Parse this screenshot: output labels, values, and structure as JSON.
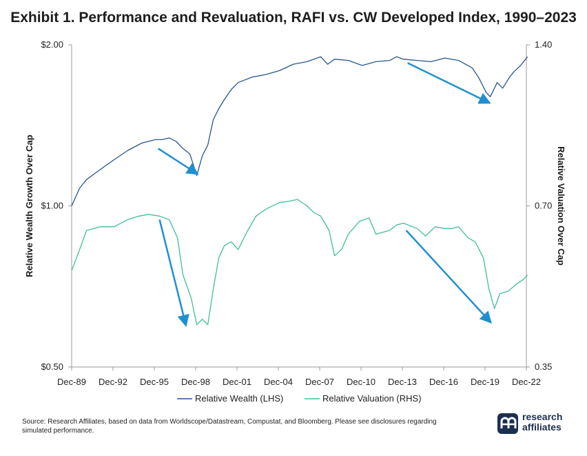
{
  "title": "Exhibit 1. Performance and Revaluation, RAFI vs. CW Developed Index, 1990–2023",
  "source": "Source: Research Affiliates, based on data from Worldscope/Datastream, Compustat, and Bloomberg. Please see disclosures regarding simulated performance.",
  "logo": {
    "line1": "research",
    "line2": "affiliates"
  },
  "colors": {
    "wealth": "#27568f",
    "valuation": "#3dbf9c",
    "arrow": "#1f8fd0",
    "axis": "#999999"
  },
  "chart_data": {
    "type": "line",
    "x_ticks": [
      "Dec-89",
      "Dec-92",
      "Dec-95",
      "Dec-98",
      "Dec-01",
      "Dec-04",
      "Dec-07",
      "Dec-10",
      "Dec-13",
      "Dec-16",
      "Dec-19",
      "Dec-22"
    ],
    "y_left": {
      "label": "Relative Wealth Growth Over Cap",
      "scale": "log",
      "range": [
        0.5,
        2.0
      ],
      "ticks": [
        "$0.50",
        "$1.00",
        "$2.00"
      ],
      "tick_values": [
        0.5,
        1.0,
        2.0
      ]
    },
    "y_right": {
      "label": "Relative Valuation Over Cap",
      "scale": "log",
      "range": [
        0.35,
        1.4
      ],
      "ticks": [
        "0.35",
        "0.70",
        "1.40"
      ],
      "tick_values": [
        0.35,
        0.7,
        1.4
      ]
    },
    "legend": {
      "placement": "bottom"
    },
    "grid": false,
    "series": [
      {
        "name": "Relative Wealth (LHS)",
        "axis": "left",
        "x": [
          1989.92,
          1990.5,
          1991.0,
          1992.0,
          1993.0,
          1994.0,
          1995.0,
          1996.0,
          1996.5,
          1997.0,
          1997.5,
          1998.0,
          1998.5,
          1999.0,
          1999.4,
          1999.8,
          2000.2,
          2000.6,
          2001.0,
          2001.5,
          2002.0,
          2003.0,
          2004.0,
          2005.0,
          2006.0,
          2007.0,
          2008.0,
          2008.5,
          2009.0,
          2010.0,
          2011.0,
          2012.0,
          2013.0,
          2013.5,
          2014.0,
          2015.0,
          2016.0,
          2017.0,
          2018.0,
          2019.0,
          2019.5,
          2020.0,
          2020.3,
          2020.8,
          2021.2,
          2021.7,
          2022.0,
          2022.5,
          2023.0
        ],
        "y": [
          1.0,
          1.08,
          1.12,
          1.17,
          1.22,
          1.27,
          1.31,
          1.33,
          1.33,
          1.34,
          1.32,
          1.28,
          1.25,
          1.14,
          1.24,
          1.3,
          1.45,
          1.52,
          1.58,
          1.65,
          1.7,
          1.74,
          1.76,
          1.79,
          1.84,
          1.86,
          1.9,
          1.84,
          1.88,
          1.87,
          1.83,
          1.86,
          1.87,
          1.9,
          1.88,
          1.87,
          1.86,
          1.89,
          1.87,
          1.81,
          1.73,
          1.63,
          1.6,
          1.7,
          1.66,
          1.74,
          1.78,
          1.83,
          1.9
        ]
      },
      {
        "name": "Relative Valuation (RHS)",
        "axis": "right",
        "x": [
          1989.92,
          1990.5,
          1991.0,
          1992.0,
          1993.0,
          1994.0,
          1994.8,
          1995.5,
          1996.3,
          1997.0,
          1997.6,
          1998.0,
          1998.6,
          1999.0,
          1999.4,
          1999.8,
          2000.2,
          2000.6,
          2001.0,
          2001.5,
          2002.0,
          2002.7,
          2003.3,
          2004.0,
          2005.0,
          2005.8,
          2006.3,
          2007.0,
          2007.5,
          2008.0,
          2008.6,
          2009.0,
          2009.5,
          2010.0,
          2010.8,
          2011.5,
          2012.0,
          2013.0,
          2013.5,
          2014.0,
          2015.0,
          2015.6,
          2016.3,
          2017.0,
          2017.5,
          2018.0,
          2018.7,
          2019.2,
          2019.8,
          2020.2,
          2020.6,
          2021.0,
          2021.6,
          2022.2,
          2022.7,
          2023.0
        ],
        "y": [
          0.53,
          0.58,
          0.63,
          0.64,
          0.64,
          0.66,
          0.67,
          0.675,
          0.67,
          0.66,
          0.61,
          0.52,
          0.47,
          0.42,
          0.43,
          0.42,
          0.49,
          0.56,
          0.59,
          0.6,
          0.58,
          0.63,
          0.67,
          0.69,
          0.71,
          0.715,
          0.72,
          0.7,
          0.68,
          0.67,
          0.63,
          0.565,
          0.58,
          0.62,
          0.655,
          0.665,
          0.62,
          0.63,
          0.645,
          0.65,
          0.635,
          0.615,
          0.64,
          0.635,
          0.635,
          0.64,
          0.61,
          0.6,
          0.56,
          0.49,
          0.45,
          0.48,
          0.485,
          0.5,
          0.51,
          0.52
        ]
      }
    ],
    "annotations": [
      {
        "type": "arrow",
        "from": [
          1996.2,
          1.28
        ],
        "to": [
          1999.0,
          1.15
        ],
        "axis": "left"
      },
      {
        "type": "arrow",
        "from": [
          2014.3,
          1.85
        ],
        "to": [
          2020.2,
          1.56
        ],
        "axis": "left"
      },
      {
        "type": "arrow",
        "from": [
          1996.3,
          0.66
        ],
        "to": [
          1998.2,
          0.42
        ],
        "axis": "right"
      },
      {
        "type": "arrow",
        "from": [
          2014.2,
          0.63
        ],
        "to": [
          2020.3,
          0.425
        ],
        "axis": "right"
      }
    ]
  }
}
